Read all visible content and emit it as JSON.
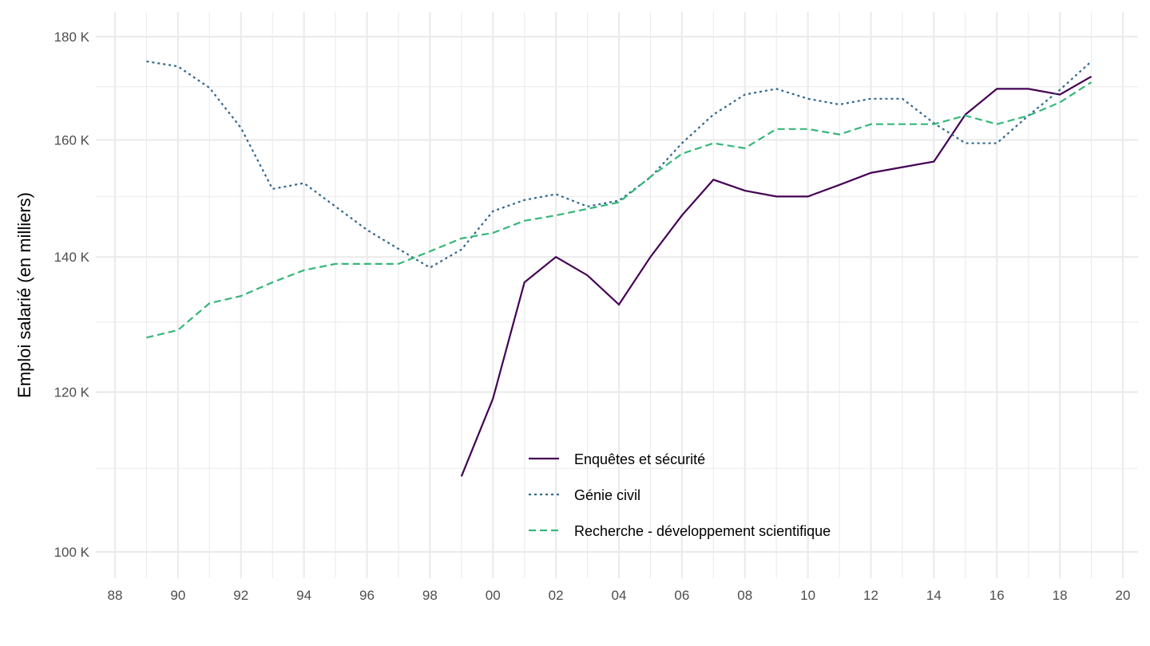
{
  "chart_data": {
    "type": "line",
    "title": "",
    "xlabel": "",
    "ylabel": "Emploi salarié (en milliers)",
    "y_scale": "log",
    "ylim": [
      100,
      180
    ],
    "xlim": [
      1988,
      2020
    ],
    "grid": true,
    "legend_position": "bottom-center inside",
    "x_ticks": [
      1988,
      1990,
      1992,
      1994,
      1996,
      1998,
      2000,
      2002,
      2004,
      2006,
      2008,
      2010,
      2012,
      2014,
      2016,
      2018,
      2020
    ],
    "x_tick_labels": [
      "88",
      "90",
      "92",
      "94",
      "96",
      "98",
      "00",
      "02",
      "04",
      "06",
      "08",
      "10",
      "12",
      "14",
      "16",
      "18",
      "20"
    ],
    "y_ticks": [
      100,
      120,
      140,
      160,
      180
    ],
    "y_tick_labels": [
      "100 K",
      "120 K",
      "140 K",
      "160 K",
      "180 K"
    ],
    "series": [
      {
        "name": "Enquêtes et sécurité",
        "color": "#440154",
        "dash": "solid",
        "x": [
          1999,
          2000,
          2001,
          2002,
          2003,
          2004,
          2005,
          2006,
          2007,
          2008,
          2009,
          2010,
          2011,
          2012,
          2013,
          2014,
          2015,
          2016,
          2017,
          2018,
          2019
        ],
        "values": [
          109.0,
          119.1,
          136.0,
          140.0,
          137.1,
          132.6,
          140.0,
          146.8,
          152.9,
          151.0,
          150.0,
          150.0,
          152.0,
          154.1,
          155.1,
          156.1,
          164.7,
          169.6,
          169.6,
          168.5,
          172.0
        ]
      },
      {
        "name": "Génie civil",
        "color": "#31688e",
        "dash": "dotted",
        "x": [
          1989,
          1990,
          1991,
          1992,
          1993,
          1994,
          1995,
          1996,
          1997,
          1998,
          1999,
          2000,
          2001,
          2002,
          2003,
          2004,
          2005,
          2006,
          2007,
          2008,
          2009,
          2010,
          2011,
          2012,
          2013,
          2014,
          2015,
          2016,
          2017,
          2018,
          2019
        ],
        "values": [
          175.0,
          174.0,
          169.8,
          162.2,
          151.3,
          152.3,
          148.3,
          144.4,
          141.3,
          138.3,
          141.2,
          147.5,
          149.4,
          150.4,
          148.3,
          149.3,
          153.3,
          159.4,
          164.7,
          168.5,
          169.6,
          167.7,
          166.6,
          167.7,
          167.7,
          163.1,
          159.4,
          159.4,
          164.5,
          169.4,
          175.0
        ]
      },
      {
        "name": "Recherche - développement scientifique",
        "color": "#35b779",
        "dash": "dashed",
        "x": [
          1989,
          1990,
          1991,
          1992,
          1993,
          1994,
          1995,
          1996,
          1997,
          1998,
          1999,
          2000,
          2001,
          2002,
          2003,
          2004,
          2005,
          2006,
          2007,
          2008,
          2009,
          2010,
          2011,
          2012,
          2013,
          2014,
          2015,
          2016,
          2017,
          2018,
          2019
        ],
        "values": [
          127.7,
          128.8,
          132.8,
          133.9,
          136.0,
          137.9,
          138.9,
          138.9,
          138.9,
          140.9,
          143.0,
          143.9,
          145.9,
          146.8,
          147.9,
          149.0,
          153.4,
          157.5,
          159.4,
          158.5,
          162.0,
          162.0,
          161.0,
          162.9,
          162.9,
          162.9,
          164.5,
          162.9,
          164.5,
          167.0,
          170.9
        ]
      }
    ]
  }
}
